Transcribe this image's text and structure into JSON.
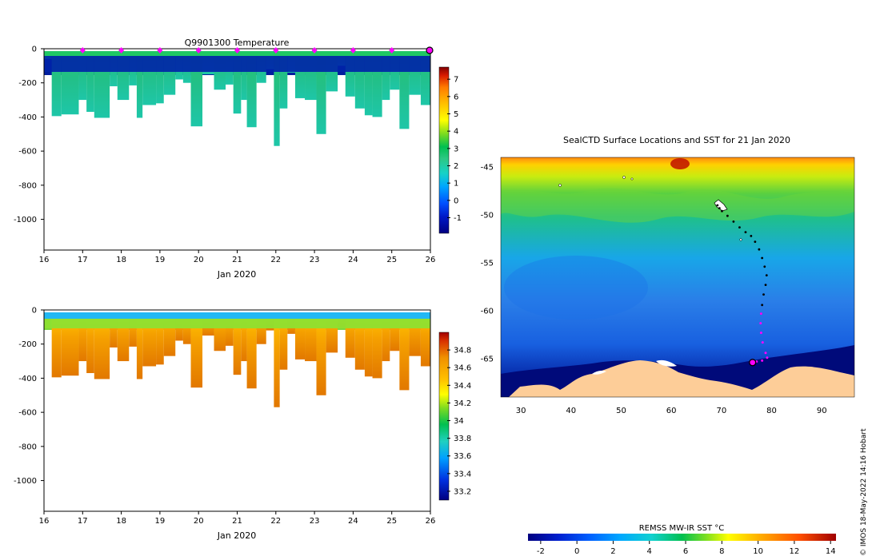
{
  "chart_data": [
    {
      "type": "heatmap",
      "title": "Q9901300  Temperature",
      "xlabel": "Jan 2020",
      "ylabel": "",
      "x_ticks": [
        "16",
        "17",
        "18",
        "19",
        "20",
        "21",
        "22",
        "23",
        "24",
        "25",
        "26"
      ],
      "x_range": [
        16,
        26
      ],
      "y_ticks": [
        "0",
        "-200",
        "-400",
        "-600",
        "-800",
        "-1000"
      ],
      "y_range": [
        -1180,
        0
      ],
      "colorbar": {
        "ticks": [
          "7",
          "6",
          "5",
          "4",
          "3",
          "2",
          "1",
          "0",
          "-1"
        ],
        "range": [
          -1.9,
          7.7
        ]
      },
      "surface_markers": [
        17,
        18,
        19,
        20,
        21,
        22,
        23,
        24,
        25
      ],
      "end_marker": 26,
      "profiles": [
        {
          "day": 16.0,
          "depth": 60
        },
        {
          "day": 16.2,
          "depth": 395
        },
        {
          "day": 16.45,
          "depth": 385
        },
        {
          "day": 16.9,
          "depth": 300
        },
        {
          "day": 17.1,
          "depth": 370
        },
        {
          "day": 17.3,
          "depth": 405
        },
        {
          "day": 17.7,
          "depth": 220
        },
        {
          "day": 17.9,
          "depth": 300
        },
        {
          "day": 18.2,
          "depth": 215
        },
        {
          "day": 18.4,
          "depth": 405
        },
        {
          "day": 18.55,
          "depth": 330
        },
        {
          "day": 18.9,
          "depth": 320
        },
        {
          "day": 19.1,
          "depth": 270
        },
        {
          "day": 19.4,
          "depth": 180
        },
        {
          "day": 19.6,
          "depth": 200
        },
        {
          "day": 19.8,
          "depth": 455
        },
        {
          "day": 20.1,
          "depth": 150
        },
        {
          "day": 20.4,
          "depth": 240
        },
        {
          "day": 20.7,
          "depth": 210
        },
        {
          "day": 20.9,
          "depth": 380
        },
        {
          "day": 21.1,
          "depth": 300
        },
        {
          "day": 21.25,
          "depth": 460
        },
        {
          "day": 21.5,
          "depth": 200
        },
        {
          "day": 21.75,
          "depth": 120
        },
        {
          "day": 21.95,
          "depth": 570
        },
        {
          "day": 22.1,
          "depth": 350
        },
        {
          "day": 22.3,
          "depth": 140
        },
        {
          "day": 22.5,
          "depth": 290
        },
        {
          "day": 22.75,
          "depth": 300
        },
        {
          "day": 23.05,
          "depth": 500
        },
        {
          "day": 23.3,
          "depth": 250
        },
        {
          "day": 23.6,
          "depth": 100
        },
        {
          "day": 23.8,
          "depth": 280
        },
        {
          "day": 24.05,
          "depth": 350
        },
        {
          "day": 24.3,
          "depth": 390
        },
        {
          "day": 24.5,
          "depth": 400
        },
        {
          "day": 24.75,
          "depth": 300
        },
        {
          "day": 24.95,
          "depth": 240
        },
        {
          "day": 25.2,
          "depth": 470
        },
        {
          "day": 25.45,
          "depth": 270
        },
        {
          "day": 25.75,
          "depth": 330
        }
      ]
    },
    {
      "type": "heatmap",
      "title": "",
      "xlabel": "Jan 2020",
      "ylabel": "",
      "x_ticks": [
        "16",
        "17",
        "18",
        "19",
        "20",
        "21",
        "22",
        "23",
        "24",
        "25",
        "26"
      ],
      "x_range": [
        16,
        26
      ],
      "y_ticks": [
        "0",
        "-200",
        "-400",
        "-600",
        "-800",
        "-1000"
      ],
      "y_range": [
        -1180,
        0
      ],
      "colorbar": {
        "ticks": [
          "34.8",
          "34.6",
          "34.4",
          "34.2",
          "34",
          "33.8",
          "33.6",
          "33.4",
          "33.2"
        ],
        "range": [
          33.1,
          35.0
        ]
      }
    },
    {
      "type": "heatmap",
      "title": "SealCTD Surface Locations and SST for 21 Jan 2020",
      "xlabel": "",
      "ylabel": "",
      "x_ticks": [
        "30",
        "40",
        "50",
        "60",
        "70",
        "80",
        "90"
      ],
      "x_range": [
        26,
        96.5
      ],
      "y_ticks": [
        "-45",
        "-50",
        "-55",
        "-60",
        "-65"
      ],
      "y_range": [
        -69,
        -44
      ],
      "colorbar": {
        "label": "REMSS MW-IR SST °C",
        "ticks": [
          "-2",
          "0",
          "2",
          "4",
          "6",
          "8",
          "10",
          "12",
          "14"
        ],
        "range": [
          -2.7,
          14.3
        ]
      },
      "track": [
        [
          69.2,
          -49.0
        ],
        [
          69.6,
          -49.3
        ],
        [
          70.1,
          -49.6
        ],
        [
          71.2,
          -50.1
        ],
        [
          72.4,
          -50.7
        ],
        [
          73.6,
          -51.3
        ],
        [
          74.8,
          -51.8
        ],
        [
          75.9,
          -52.2
        ],
        [
          76.7,
          -52.8
        ],
        [
          77.5,
          -53.6
        ],
        [
          78.1,
          -54.5
        ],
        [
          78.6,
          -55.4
        ],
        [
          79.0,
          -56.3
        ],
        [
          78.8,
          -57.3
        ],
        [
          78.4,
          -58.3
        ],
        [
          78.1,
          -59.4
        ],
        [
          77.9,
          -60.3
        ]
      ],
      "track_recent": [
        [
          77.9,
          -60.3
        ],
        [
          77.8,
          -61.3
        ],
        [
          77.9,
          -62.3
        ],
        [
          78.2,
          -63.3
        ],
        [
          78.8,
          -64.4
        ],
        [
          79.1,
          -64.9
        ],
        [
          78.1,
          -65.2
        ],
        [
          77.0,
          -65.3
        ],
        [
          76.4,
          -65.35
        ]
      ],
      "current_position": [
        76.2,
        -65.4
      ]
    }
  ],
  "footer": {
    "credit": "© IMOS 18-May-2022 14:16 Hobart"
  }
}
